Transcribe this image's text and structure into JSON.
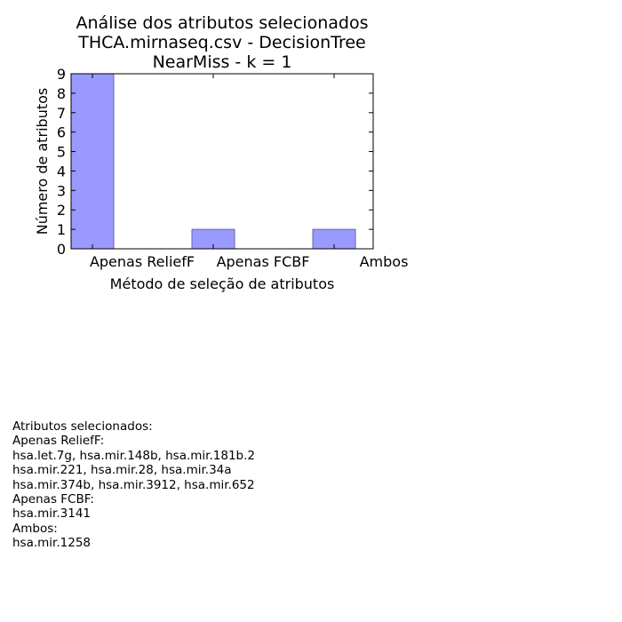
{
  "chart_data": {
    "type": "bar",
    "title": [
      "Análise dos atributos selecionados",
      "THCA.mirnaseq.csv - DecisionTree",
      "NearMiss - k = 1"
    ],
    "categories": [
      "Apenas ReliefF",
      "Apenas FCBF",
      "Ambos"
    ],
    "values": [
      9,
      1,
      1
    ],
    "xlabel": "Método de seleção de atributos",
    "ylabel": "Número de atributos",
    "ylim": [
      0,
      9
    ],
    "yticks": [
      "0",
      "1",
      "2",
      "3",
      "4",
      "5",
      "6",
      "7",
      "8",
      "9"
    ],
    "grid": false,
    "bar_color": "#9999ff",
    "bar_edge_color": "#6666aa"
  },
  "notes": {
    "heading": "Atributos selecionados:",
    "relieff_label": "Apenas ReliefF:",
    "relieff_lines": [
      "hsa.let.7g, hsa.mir.148b, hsa.mir.181b.2",
      "hsa.mir.221, hsa.mir.28, hsa.mir.34a",
      "hsa.mir.374b, hsa.mir.3912, hsa.mir.652"
    ],
    "fcbf_label": "Apenas FCBF:",
    "fcbf_lines": [
      "hsa.mir.3141"
    ],
    "ambos_label": "Ambos:",
    "ambos_lines": [
      "hsa.mir.1258"
    ]
  }
}
